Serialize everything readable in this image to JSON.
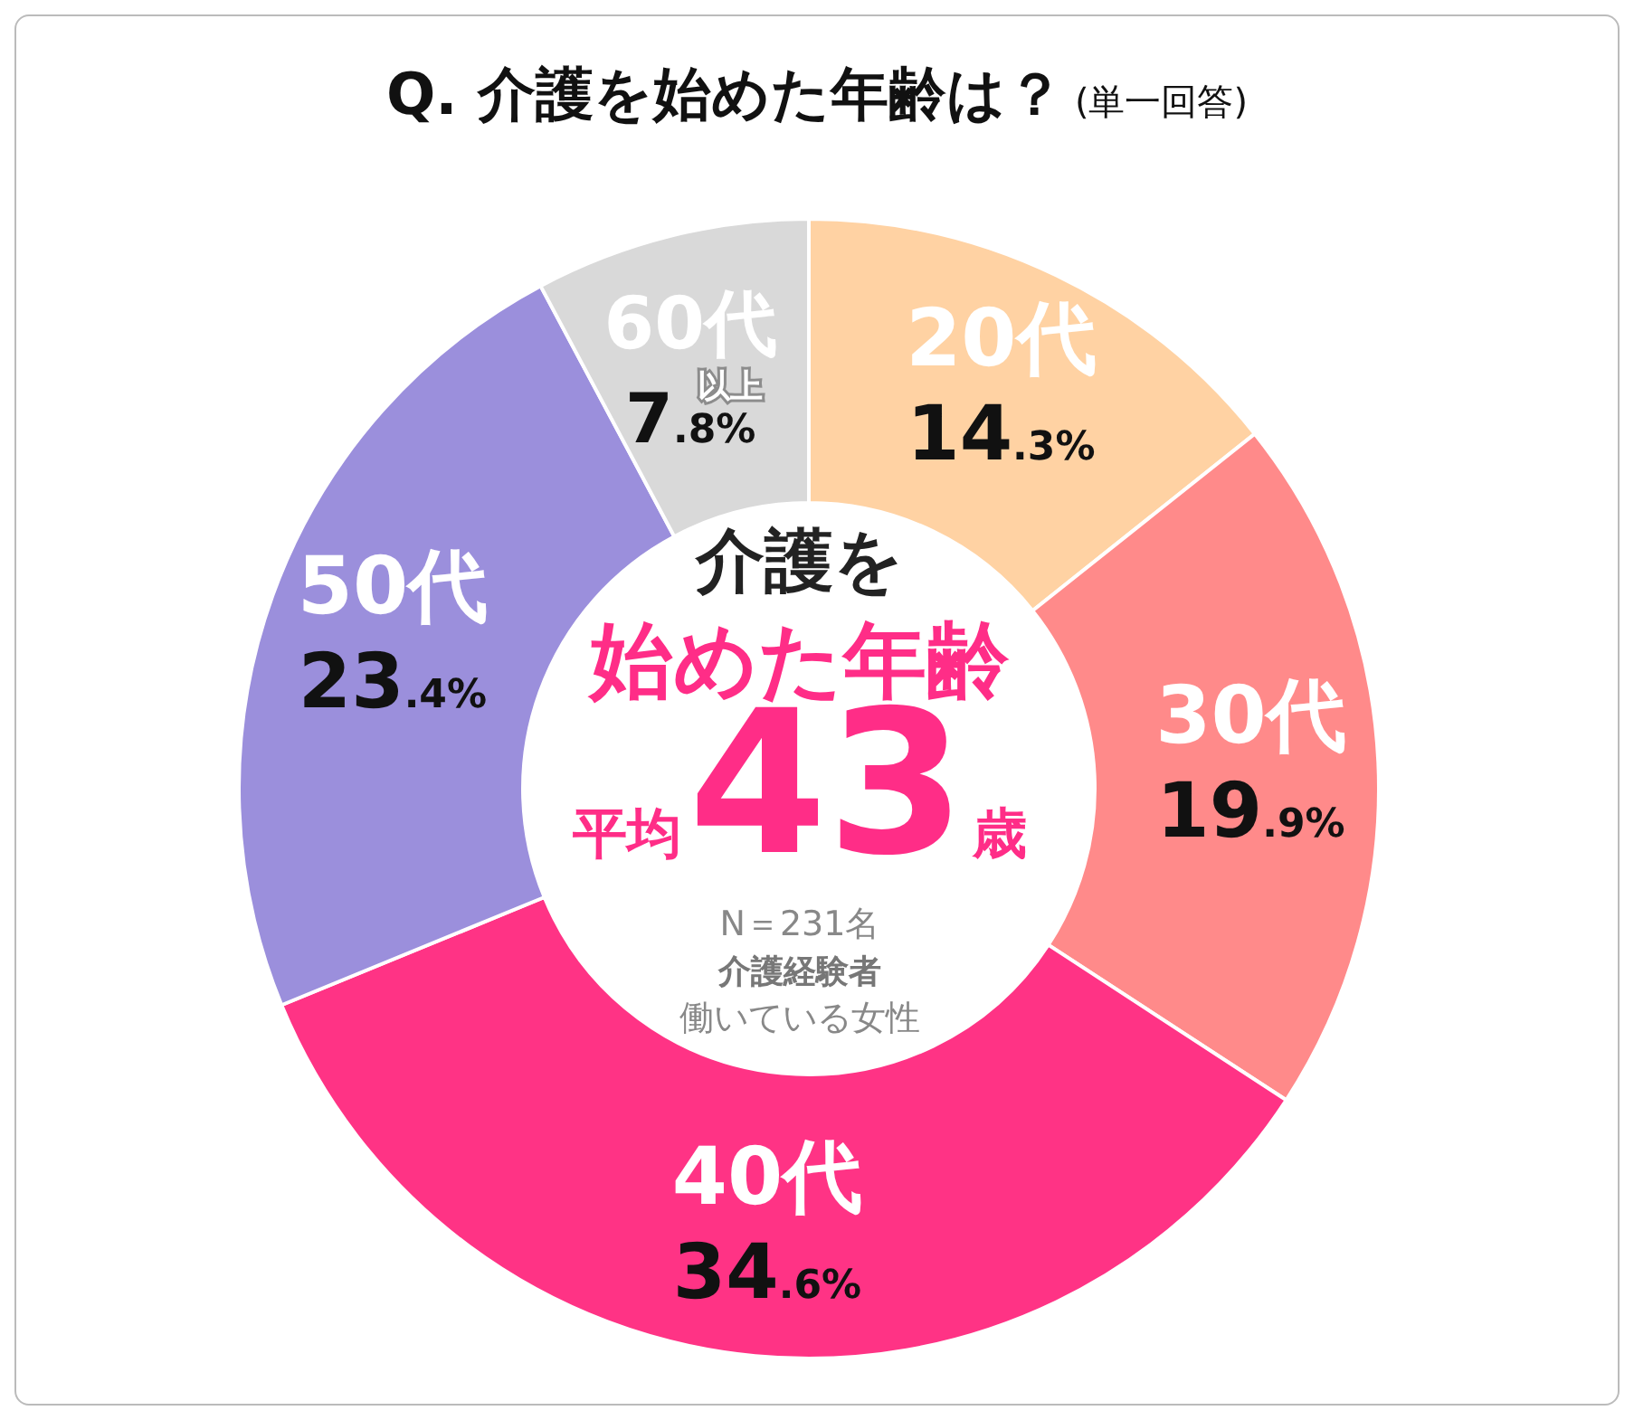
{
  "chart_data": {
    "type": "donut",
    "title": "Q.  介護を始めた年齢は？",
    "subtitle": "(単一回答)",
    "categories": [
      "20代",
      "30代",
      "40代",
      "50代",
      "60代$_{以上}$"
    ],
    "values": [
      14.3,
      19.9,
      34.6,
      23.4,
      7.8
    ],
    "colors": [
      "#ffd2a3",
      "#ff8a8a",
      "#ff3385",
      "#9b8fdc",
      "#d9d9d9"
    ],
    "value_labels": [
      "14.3%",
      "19.9%",
      "34.6%",
      "23.4%",
      "7.8%"
    ],
    "annotations": [
      "介護を",
      "始めた年齢",
      "平均43歳",
      "N＝231名",
      "介護経験者",
      "働いている女性"
    ],
    "legend": false
  }
}
